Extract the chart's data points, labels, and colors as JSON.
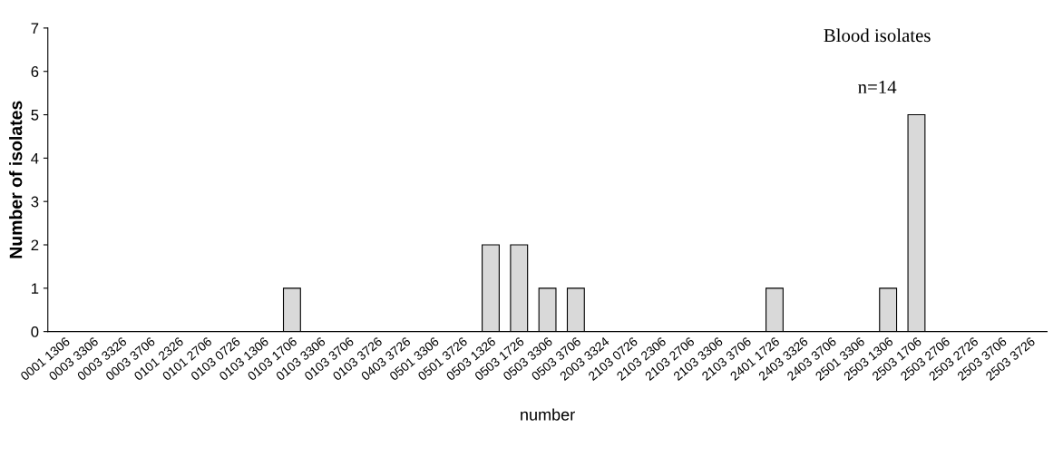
{
  "chart_data": {
    "type": "bar",
    "title": "Blood isolates",
    "subtitle": "n=14",
    "xlabel": "number",
    "ylabel": "Number of isolates",
    "categories": [
      "0001 1306",
      "0003 3306",
      "0003 3326",
      "0003 3706",
      "0101 2326",
      "0101 2706",
      "0103 0726",
      "0103 1306",
      "0103 1706",
      "0103 3306",
      "0103 3706",
      "0103 3726",
      "0403 3726",
      "0501 3306",
      "0501 3726",
      "0503 1326",
      "0503 1726",
      "0503 3306",
      "0503 3706",
      "2003 3324",
      "2103 0726",
      "2103 2306",
      "2103 2706",
      "2103 3306",
      "2103 3706",
      "2401 1726",
      "2403 3326",
      "2403 3706",
      "2501 3306",
      "2503 1306",
      "2503 1706",
      "2503 2706",
      "2503 2726",
      "2503 3706",
      "2503 3726"
    ],
    "values": [
      0,
      0,
      0,
      0,
      0,
      0,
      0,
      0,
      1,
      0,
      0,
      0,
      0,
      0,
      0,
      2,
      2,
      1,
      1,
      0,
      0,
      0,
      0,
      0,
      0,
      1,
      0,
      0,
      0,
      1,
      5,
      0,
      0,
      0,
      0
    ],
    "color": "#d9d9d9",
    "ylim": [
      0,
      7
    ],
    "yticks": [
      0,
      1,
      2,
      3,
      4,
      5,
      6,
      7
    ],
    "grid": false
  }
}
